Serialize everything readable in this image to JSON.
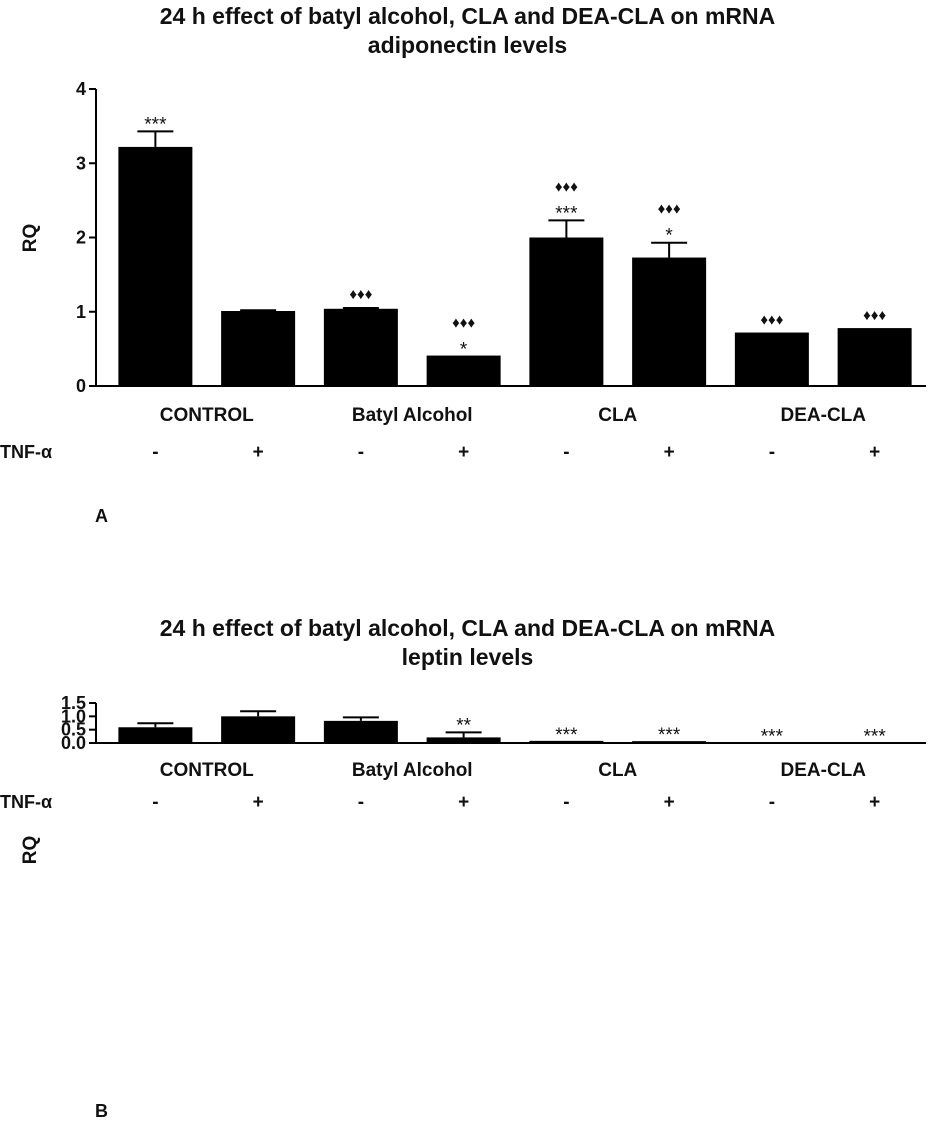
{
  "chart_data": [
    {
      "type": "bar",
      "title_lines": [
        "24 h effect of batyl alcohol, CLA and DEA-CLA on mRNA",
        "adiponectin levels"
      ],
      "ylabel": "RQ",
      "ylim": [
        0,
        4
      ],
      "yticks": [
        "0",
        "1",
        "2",
        "3",
        "4"
      ],
      "groups": [
        "CONTROL",
        "Batyl Alcohol",
        "CLA",
        "DEA-CLA"
      ],
      "treatment_label": "TNF-α",
      "treatments": [
        "-",
        "+",
        "-",
        "+",
        "-",
        "+",
        "-",
        "+"
      ],
      "values": [
        3.22,
        1.01,
        1.04,
        0.41,
        2.0,
        1.73,
        0.72,
        0.78
      ],
      "errors": [
        0.21,
        0.01,
        0.01,
        0.0,
        0.23,
        0.2,
        0.0,
        0.0
      ],
      "annotations": [
        [
          "***"
        ],
        [],
        [
          "♦♦♦"
        ],
        [
          "♦♦♦",
          "*"
        ],
        [
          "♦♦♦",
          "***"
        ],
        [
          "♦♦♦",
          "*"
        ],
        [
          "♦♦♦"
        ],
        [
          "♦♦♦"
        ]
      ],
      "panel_label": "A"
    },
    {
      "type": "bar",
      "title_lines": [
        "24 h effect of batyl alcohol, CLA and DEA-CLA on mRNA",
        "leptin levels"
      ],
      "ylabel": "RQ",
      "ylim": [
        0,
        1.5
      ],
      "yticks": [
        "0.0",
        "0.5",
        "1.0",
        "1.5"
      ],
      "groups": [
        "CONTROL",
        "Batyl Alcohol",
        "CLA",
        "DEA-CLA"
      ],
      "treatment_label": "TNF-α",
      "treatments": [
        "-",
        "+",
        "-",
        "+",
        "-",
        "+",
        "-",
        "+"
      ],
      "values": [
        0.59,
        1.0,
        0.83,
        0.21,
        0.08,
        0.07,
        0.02,
        0.02
      ],
      "errors": [
        0.15,
        0.19,
        0.13,
        0.19,
        0.0,
        0.0,
        0.0,
        0.0
      ],
      "annotations": [
        [],
        [],
        [],
        [
          "**"
        ],
        [
          "***"
        ],
        [
          "***"
        ],
        [
          "***"
        ],
        [
          "***"
        ]
      ],
      "panel_label": "B"
    }
  ]
}
